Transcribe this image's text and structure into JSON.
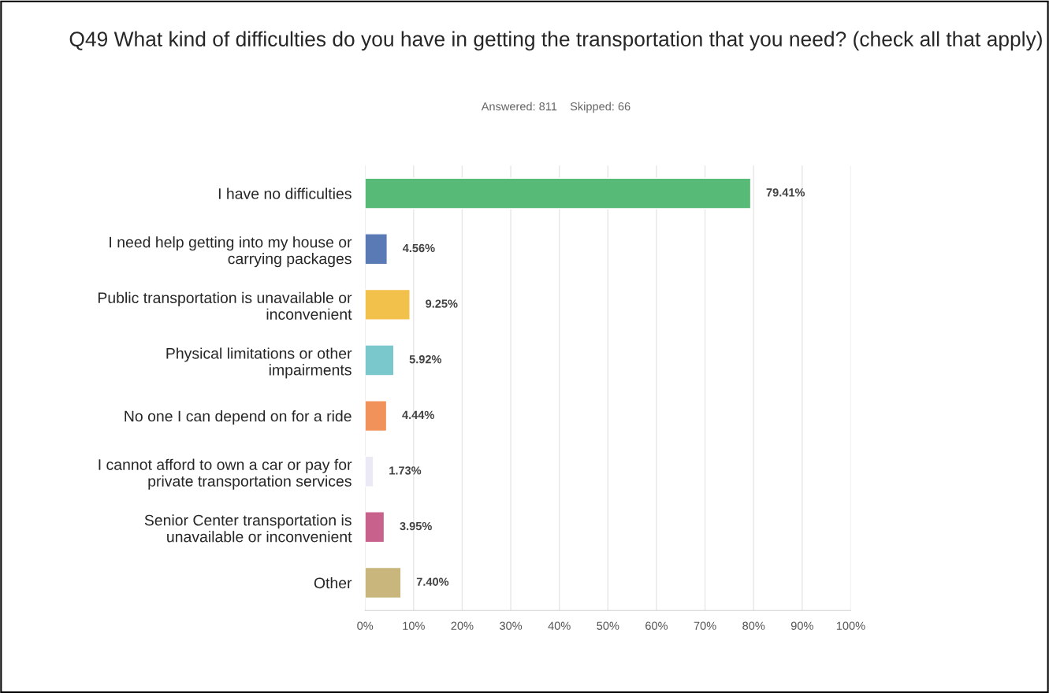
{
  "chart_data": {
    "type": "bar",
    "orientation": "horizontal",
    "title": "Q49 What kind of difficulties do you have in getting the transportation that you need? (check all that apply)",
    "subtitle": "Answered: 811    Skipped: 66",
    "categories": [
      "I have no difficulties",
      "I need help getting into my house or\ncarrying packages",
      "Public transportation is unavailable or\ninconvenient",
      "Physical limitations or other\nimpairments",
      "No one I can depend on for a ride",
      "I cannot afford to own a car or pay for\nprivate transportation services",
      "Senior Center transportation is\nunavailable or inconvenient",
      "Other"
    ],
    "values": [
      79.41,
      4.56,
      9.25,
      5.92,
      4.44,
      1.73,
      3.95,
      7.4
    ],
    "value_labels": [
      "79.41%",
      "4.56%",
      "9.25%",
      "5.92%",
      "4.44%",
      "1.73%",
      "3.95%",
      "7.40%"
    ],
    "colors": [
      "#57bb77",
      "#5a7ab5",
      "#f2c14b",
      "#7ac8cc",
      "#f0925a",
      "#ece9f6",
      "#c9618d",
      "#c9b67c"
    ],
    "xlim": [
      0,
      100
    ],
    "xticks": [
      {
        "value": 0,
        "label": "0%"
      },
      {
        "value": 10,
        "label": "10%"
      },
      {
        "value": 20,
        "label": "20%"
      },
      {
        "value": 30,
        "label": "30%"
      },
      {
        "value": 40,
        "label": "40%"
      },
      {
        "value": 50,
        "label": "50%"
      },
      {
        "value": 60,
        "label": "60%"
      },
      {
        "value": 70,
        "label": "70%"
      },
      {
        "value": 80,
        "label": "80%"
      },
      {
        "value": 90,
        "label": "90%"
      },
      {
        "value": 100,
        "label": "100%"
      }
    ],
    "grid": "x",
    "legend": false
  }
}
